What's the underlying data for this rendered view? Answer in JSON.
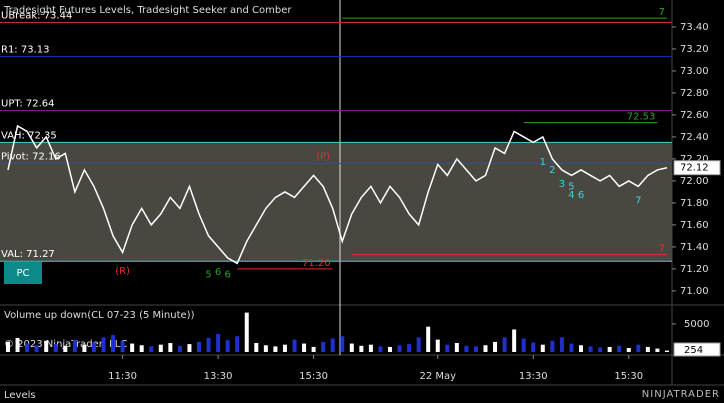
{
  "chart_data": [
    {
      "type": "line",
      "title": "Tradesight Futures Levels, Tradesight Seeker and Comber",
      "color": "#ffffff",
      "values": [
        72.1,
        72.5,
        72.45,
        72.3,
        72.4,
        72.2,
        72.25,
        71.9,
        72.1,
        71.95,
        71.75,
        71.5,
        71.35,
        71.6,
        71.75,
        71.6,
        71.7,
        71.85,
        71.75,
        71.95,
        71.7,
        71.5,
        71.4,
        71.3,
        71.25,
        71.45,
        71.6,
        71.75,
        71.85,
        71.9,
        71.85,
        71.95,
        72.05,
        71.95,
        71.75,
        71.45,
        71.7,
        71.85,
        71.95,
        71.8,
        71.95,
        71.85,
        71.7,
        71.6,
        71.9,
        72.15,
        72.05,
        72.2,
        72.1,
        72.0,
        72.05,
        72.3,
        72.25,
        72.45,
        72.4,
        72.35,
        72.4,
        72.2,
        72.1,
        72.05,
        72.1,
        72.05,
        72.0,
        72.05,
        71.95,
        72.0,
        71.95,
        72.05,
        72.1,
        72.12
      ],
      "ylim": [
        70.89,
        73.645
      ],
      "yticks": [
        {
          "value": 71.0,
          "label": "71.00"
        },
        {
          "value": 71.2,
          "label": "71.20"
        },
        {
          "value": 71.4,
          "label": "71.40"
        },
        {
          "value": 71.6,
          "label": "71.60"
        },
        {
          "value": 71.8,
          "label": "71.80"
        },
        {
          "value": 72.0,
          "label": "72.00"
        },
        {
          "value": 72.2,
          "label": "72.20"
        },
        {
          "value": 72.4,
          "label": "72.40"
        },
        {
          "value": 72.6,
          "label": "72.60"
        },
        {
          "value": 72.8,
          "label": "72.80"
        },
        {
          "value": 73.0,
          "label": "73.00"
        },
        {
          "value": 73.2,
          "label": "73.20"
        },
        {
          "value": 73.4,
          "label": "73.40"
        }
      ],
      "xticks": [
        {
          "value": 12,
          "label": "11:30"
        },
        {
          "value": 22,
          "label": "13:30"
        },
        {
          "value": 32,
          "label": "15:30"
        },
        {
          "value": 45,
          "label": "22 May"
        },
        {
          "value": 55,
          "label": "13:30"
        },
        {
          "value": 65,
          "label": "15:30"
        }
      ],
      "levels": [
        {
          "label": "UBreak: 73.44",
          "value": 73.44,
          "color": "#c03030"
        },
        {
          "label": "R1: 73.13",
          "value": 73.13,
          "color": "#2030c0"
        },
        {
          "label": "UPT: 72.64",
          "value": 72.64,
          "color": "#802080"
        },
        {
          "label": "VAH: 72.35",
          "value": 72.35,
          "color": "#40d0d0"
        },
        {
          "label": "Pivot: 72.16",
          "value": 72.16,
          "color": "#3040e0"
        },
        {
          "label": "VAL: 71.27",
          "value": 71.27,
          "color": "#40d0d0"
        }
      ],
      "segments": [
        {
          "value": 72.53,
          "label": "72.53",
          "from": 54,
          "to": 68,
          "color": "#2aa02a"
        },
        {
          "value": 71.2,
          "label": "71.20",
          "from": 24,
          "to": 34,
          "color": "#e03030"
        },
        {
          "value": 73.48,
          "label": "7",
          "from": 35,
          "to": 69,
          "color": "#2aa02a"
        },
        {
          "value": 71.33,
          "label": "7",
          "from": 36,
          "to": 69,
          "color": "#e03030"
        }
      ],
      "annotations": [
        {
          "text": "(R)",
          "x": 12,
          "y": 71.18,
          "color": "#e03030"
        },
        {
          "text": "(P)",
          "x": 33,
          "y": 72.22,
          "color": "#e03030"
        },
        {
          "text": "5",
          "x": 21,
          "y": 71.15,
          "color": "#2aa02a"
        },
        {
          "text": "6",
          "x": 22,
          "y": 71.17,
          "color": "#2aa02a"
        },
        {
          "text": "6",
          "x": 23,
          "y": 71.15,
          "color": "#2aa02a"
        },
        {
          "text": "1",
          "x": 56,
          "y": 72.17,
          "color": "#40d0e0"
        },
        {
          "text": "2",
          "x": 57,
          "y": 72.1,
          "color": "#40d0e0"
        },
        {
          "text": "3",
          "x": 58,
          "y": 71.97,
          "color": "#40d0e0"
        },
        {
          "text": "5",
          "x": 59,
          "y": 71.95,
          "color": "#40d0e0"
        },
        {
          "text": "4",
          "x": 59,
          "y": 71.87,
          "color": "#40d0e0"
        },
        {
          "text": "6",
          "x": 60,
          "y": 71.87,
          "color": "#40d0e0"
        },
        {
          "text": "7",
          "x": 66,
          "y": 71.82,
          "color": "#40d0e0"
        }
      ],
      "button": "PC"
    },
    {
      "type": "bar",
      "title": "Volume up down(CL 07-23 (5 Minute))",
      "values": [
        1800,
        2500,
        1500,
        1200,
        2000,
        1400,
        1100,
        2200,
        1300,
        1700,
        2600,
        3000,
        1900,
        1500,
        1200,
        1000,
        1300,
        1600,
        1100,
        1400,
        1800,
        2500,
        3200,
        2100,
        2800,
        7000,
        1600,
        1200,
        1000,
        1300,
        2200,
        1500,
        900,
        1800,
        2400,
        2800,
        1500,
        1100,
        1300,
        1000,
        900,
        1200,
        1400,
        2600,
        4500,
        2200,
        1300,
        1600,
        1100,
        1000,
        1200,
        1800,
        2600,
        4000,
        2400,
        1700,
        1300,
        2000,
        2600,
        1500,
        1200,
        1000,
        800,
        900,
        1100,
        700,
        1300,
        900,
        600,
        254
      ],
      "ylim": [
        0,
        8000
      ],
      "yticks": [
        5000
      ],
      "up_color": "#ffffff",
      "down_color": "#2030d0"
    }
  ],
  "copyright": "© 2023 NinjaTrader, LLC",
  "tab": "Levels",
  "logo": "NINJATRADER"
}
